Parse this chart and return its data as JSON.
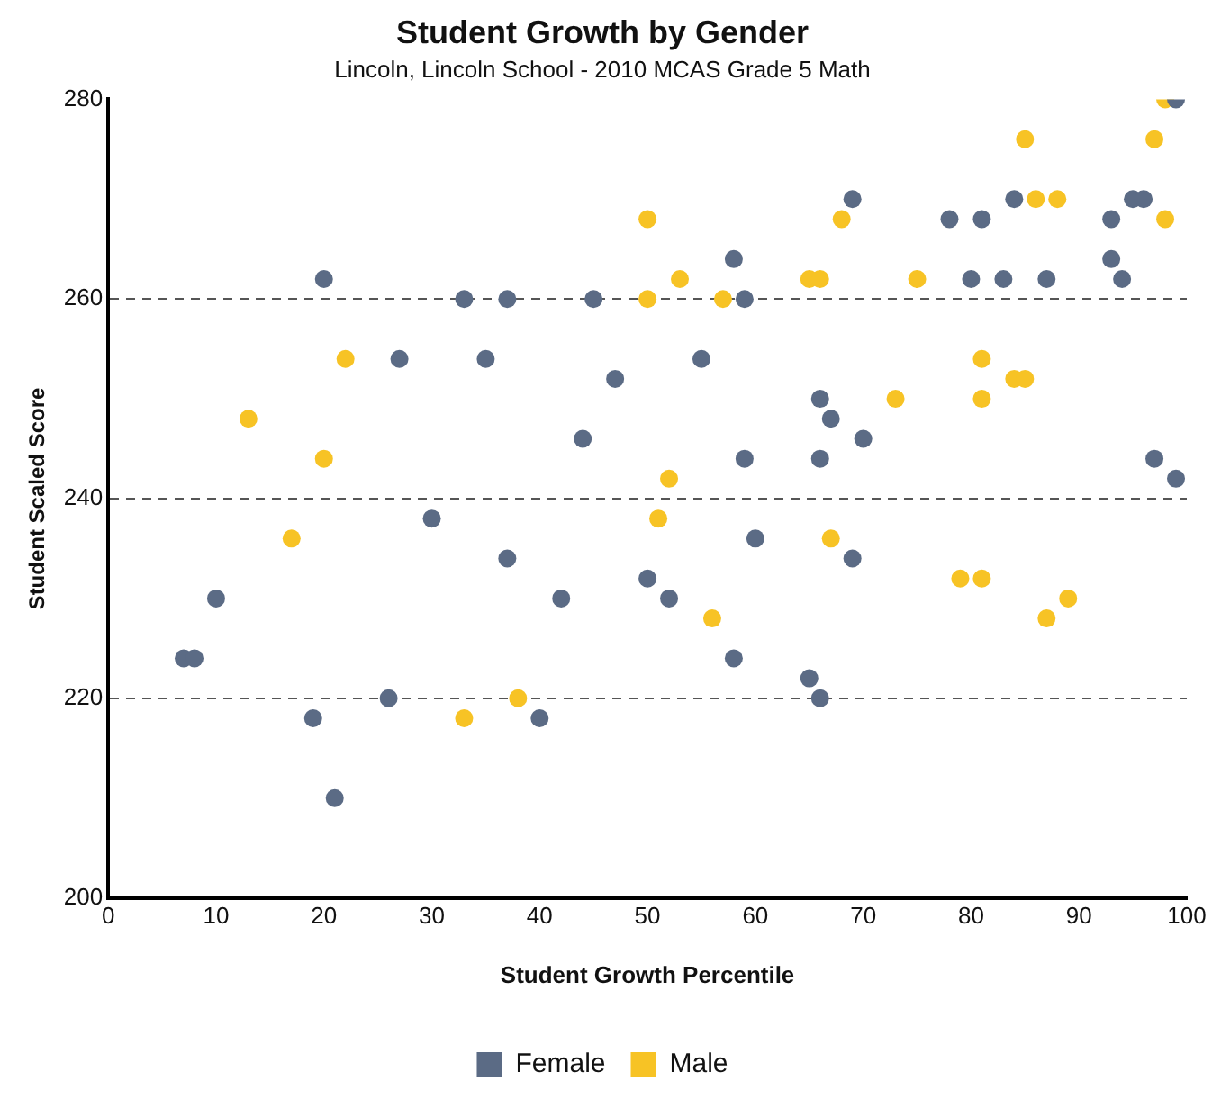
{
  "chart_data": {
    "type": "scatter",
    "title": "Student Growth by Gender",
    "subtitle": "Lincoln, Lincoln School - 2010 MCAS Grade 5 Math",
    "xlabel": "Student Growth Percentile",
    "ylabel": "Student Scaled Score",
    "xlim": [
      0,
      100
    ],
    "xticks": [
      0,
      10,
      20,
      30,
      40,
      50,
      60,
      70,
      80,
      90,
      100
    ],
    "ylim": [
      200,
      280
    ],
    "yticks": [
      200,
      220,
      240,
      260,
      280
    ],
    "grid": "y",
    "line_style": "dashed",
    "legend": "bottom",
    "marker": "circle",
    "series": [
      {
        "name": "Female",
        "color": "#5b6b85",
        "x": [
          7,
          8,
          10,
          19,
          20,
          21,
          26,
          27,
          30,
          33,
          35,
          37,
          37,
          40,
          42,
          44,
          45,
          47,
          50,
          52,
          55,
          58,
          58,
          59,
          59,
          60,
          65,
          66,
          66,
          66,
          67,
          69,
          69,
          70,
          78,
          80,
          81,
          83,
          84,
          87,
          93,
          93,
          94,
          95,
          96,
          97,
          99,
          99
        ],
        "values": [
          224,
          224,
          230,
          218,
          262,
          210,
          220,
          254,
          238,
          260,
          254,
          260,
          234,
          218,
          230,
          246,
          260,
          252,
          232,
          230,
          254,
          264,
          224,
          260,
          244,
          236,
          222,
          220,
          250,
          244,
          248,
          270,
          234,
          246,
          268,
          262,
          268,
          262,
          270,
          262,
          268,
          264,
          262,
          270,
          270,
          244,
          242,
          280
        ]
      },
      {
        "name": "Male",
        "color": "#f7c325",
        "x": [
          13,
          17,
          20,
          22,
          33,
          38,
          50,
          50,
          51,
          52,
          53,
          56,
          57,
          65,
          66,
          67,
          68,
          73,
          75,
          79,
          81,
          81,
          81,
          84,
          85,
          85,
          86,
          87,
          88,
          89,
          97,
          98,
          98
        ],
        "values": [
          248,
          236,
          244,
          254,
          218,
          220,
          268,
          260,
          238,
          242,
          262,
          228,
          260,
          262,
          262,
          236,
          268,
          250,
          262,
          232,
          232,
          250,
          254,
          252,
          252,
          276,
          270,
          228,
          270,
          230,
          276,
          280,
          268
        ]
      }
    ]
  }
}
